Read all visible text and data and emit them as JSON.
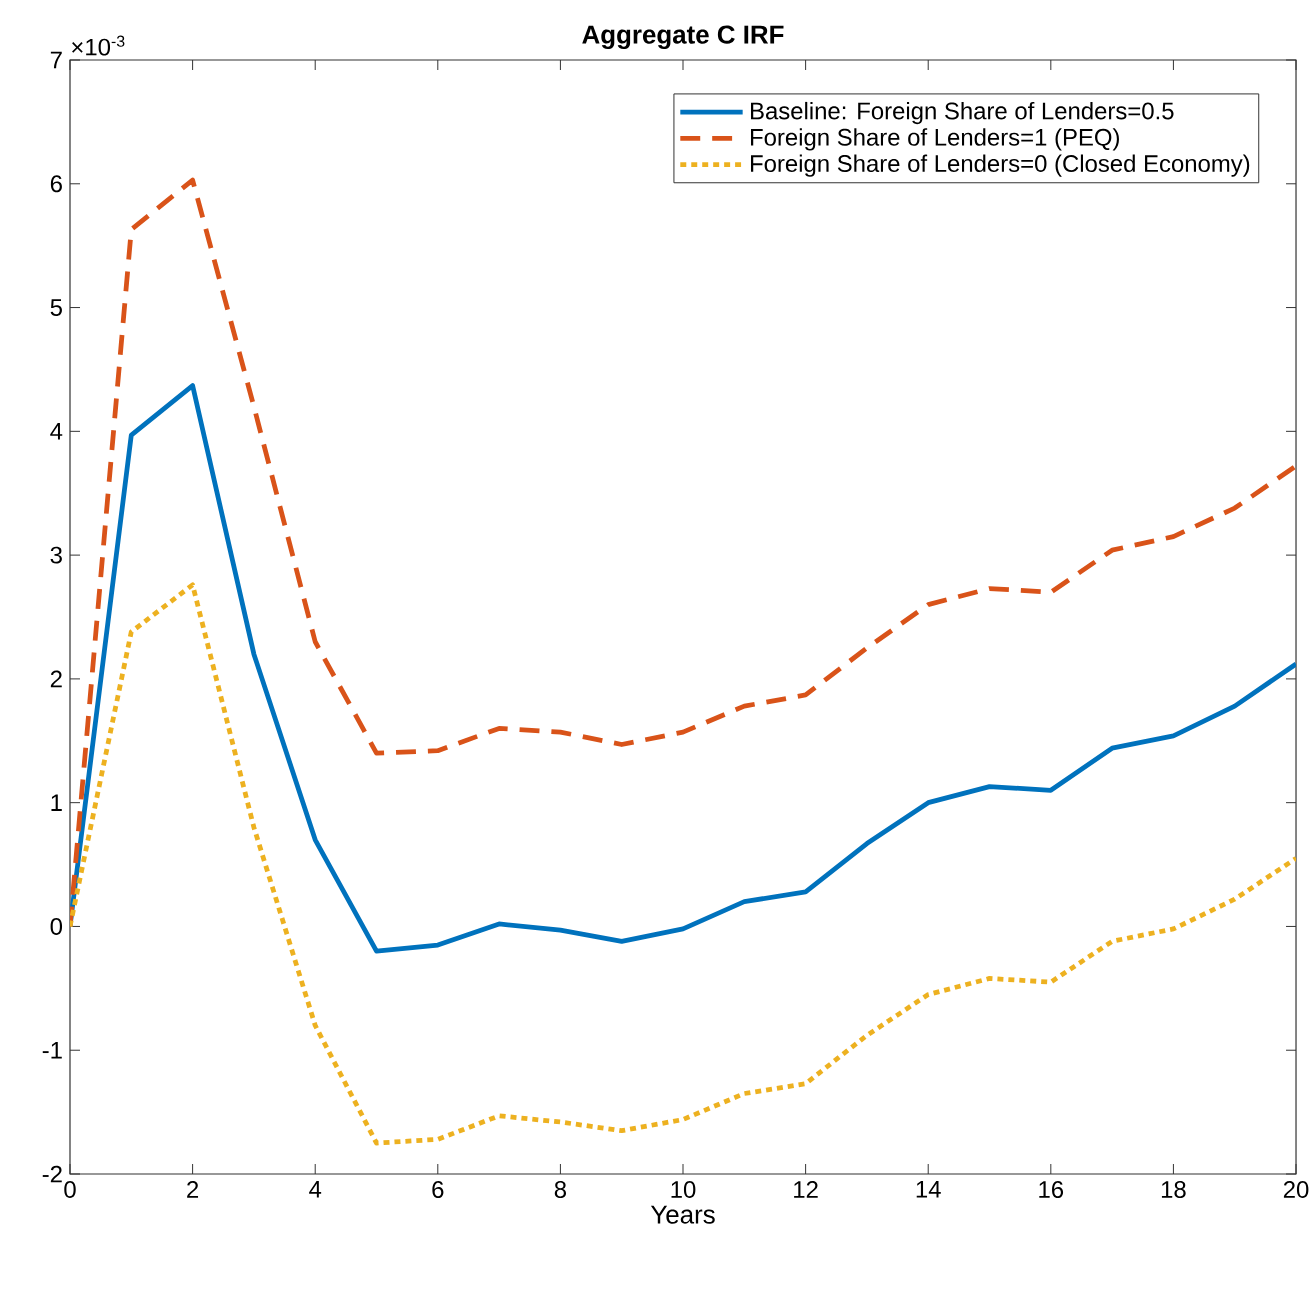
{
  "chart_data": {
    "type": "line",
    "title": "Aggregate C IRF",
    "xlabel": "Years",
    "x": [
      0,
      1,
      2,
      3,
      4,
      5,
      6,
      7,
      8,
      9,
      10,
      11,
      12,
      13,
      14,
      15,
      16,
      17,
      18,
      19,
      20
    ],
    "series": [
      {
        "name": "Baseline: Foreign Share of Lenders=0.5",
        "color": "#0072bd",
        "line_style": "solid",
        "values": [
          0,
          3.97,
          4.37,
          2.2,
          0.7,
          -0.2,
          -0.15,
          0.02,
          -0.03,
          -0.12,
          -0.02,
          0.2,
          0.28,
          0.67,
          1.0,
          1.13,
          1.1,
          1.44,
          1.54,
          1.78,
          2.12
        ]
      },
      {
        "name": "Foreign Share of Lenders=1 (PEQ)",
        "color": "#d95319",
        "line_style": "dashed",
        "values": [
          0,
          5.63,
          6.03,
          4.2,
          2.3,
          1.4,
          1.42,
          1.6,
          1.57,
          1.47,
          1.57,
          1.78,
          1.87,
          2.25,
          2.6,
          2.73,
          2.7,
          3.04,
          3.15,
          3.38,
          3.72
        ]
      },
      {
        "name": "Foreign Share of Lenders=0 (Closed Economy)",
        "color": "#edb120",
        "line_style": "dotted",
        "values": [
          0,
          2.38,
          2.76,
          0.8,
          -0.8,
          -1.75,
          -1.72,
          -1.53,
          -1.58,
          -1.65,
          -1.56,
          -1.35,
          -1.27,
          -0.88,
          -0.55,
          -0.42,
          -0.45,
          -0.12,
          -0.02,
          0.22,
          0.55
        ]
      }
    ],
    "xlim": [
      0,
      20
    ],
    "xticks": [
      0,
      2,
      4,
      6,
      8,
      10,
      12,
      14,
      16,
      18,
      20
    ],
    "ylim": [
      -2,
      7
    ],
    "yticks": [
      -2,
      -1,
      0,
      1,
      2,
      3,
      4,
      5,
      6,
      7
    ],
    "annotations": [
      "×10$^{-3}$"
    ],
    "legend": "top right",
    "grid": false,
    "marker": "none"
  }
}
